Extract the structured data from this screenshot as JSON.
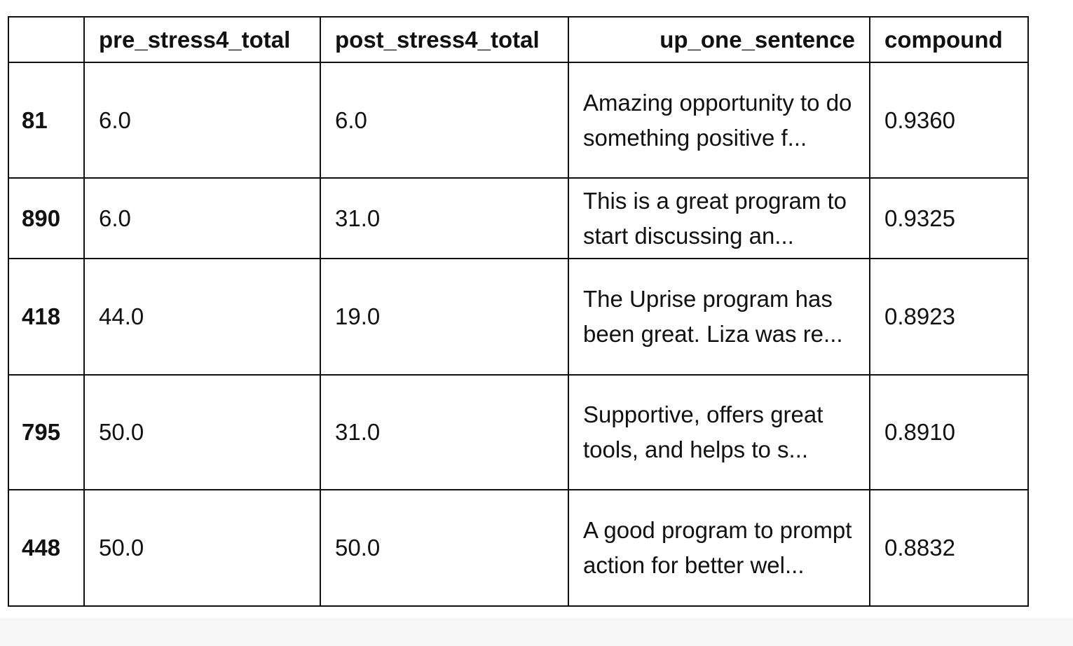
{
  "table": {
    "header": [
      "",
      "pre_stress4_total",
      "post_stress4_total",
      "up_one_sentence",
      "compound"
    ],
    "rows": [
      [
        "81",
        "6.0",
        "6.0",
        "Amazing opportunity to do something positive f...",
        "0.9360"
      ],
      [
        "890",
        "6.0",
        "31.0",
        "This is a great program to start discussing an...",
        "0.9325"
      ],
      [
        "418",
        "44.0",
        "19.0",
        "The Uprise program has been great. Liza was re...",
        "0.8923"
      ],
      [
        "795",
        "50.0",
        "31.0",
        "Supportive, offers great tools, and helps to s...",
        "0.8910"
      ],
      [
        "448",
        "50.0",
        "50.0",
        "A good program to prompt action for better wel...",
        "0.8832"
      ]
    ]
  }
}
